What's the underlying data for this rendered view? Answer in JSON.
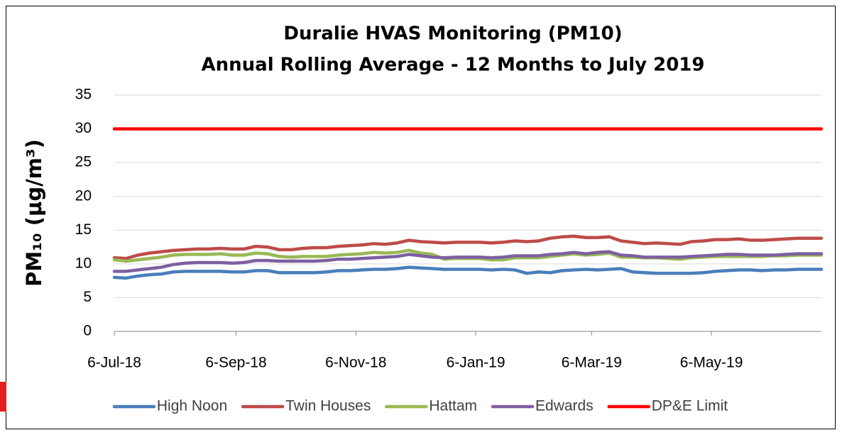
{
  "chart_data": {
    "type": "line",
    "title": "Duralie HVAS Monitoring (PM10)",
    "subtitle": "Annual Rolling Average - 12 Months to July 2019",
    "ylabel": "PM₁₀ (µg/m³)",
    "x": [
      "2018-07-06",
      "2018-07-12",
      "2018-07-18",
      "2018-07-24",
      "2018-07-30",
      "2018-08-05",
      "2018-08-11",
      "2018-08-17",
      "2018-08-23",
      "2018-08-29",
      "2018-09-04",
      "2018-09-10",
      "2018-09-16",
      "2018-09-22",
      "2018-09-28",
      "2018-10-04",
      "2018-10-10",
      "2018-10-16",
      "2018-10-22",
      "2018-10-28",
      "2018-11-03",
      "2018-11-09",
      "2018-11-15",
      "2018-11-21",
      "2018-11-27",
      "2018-12-03",
      "2018-12-09",
      "2018-12-15",
      "2018-12-21",
      "2018-12-27",
      "2019-01-02",
      "2019-01-08",
      "2019-01-14",
      "2019-01-20",
      "2019-01-26",
      "2019-02-01",
      "2019-02-07",
      "2019-02-13",
      "2019-02-19",
      "2019-02-25",
      "2019-03-03",
      "2019-03-09",
      "2019-03-15",
      "2019-03-21",
      "2019-03-27",
      "2019-04-02",
      "2019-04-08",
      "2019-04-14",
      "2019-04-20",
      "2019-04-26",
      "2019-05-02",
      "2019-05-08",
      "2019-05-14",
      "2019-05-20",
      "2019-05-26",
      "2019-06-01",
      "2019-06-07",
      "2019-06-13",
      "2019-06-19",
      "2019-06-25",
      "2019-07-01"
    ],
    "xlim": [
      "2018-07-06",
      "2019-07-01"
    ],
    "xticks": [
      {
        "value": "2018-07-06",
        "label": "6-Jul-18"
      },
      {
        "value": "2018-09-06",
        "label": "6-Sep-18"
      },
      {
        "value": "2018-11-06",
        "label": "6-Nov-18"
      },
      {
        "value": "2019-01-06",
        "label": "6-Jan-19"
      },
      {
        "value": "2019-03-06",
        "label": "6-Mar-19"
      },
      {
        "value": "2019-05-06",
        "label": "6-May-19"
      }
    ],
    "ylim": [
      0,
      35
    ],
    "yticks": [
      0,
      5,
      10,
      15,
      20,
      25,
      30,
      35
    ],
    "grid": true,
    "legend": "bottom",
    "series": [
      {
        "name": "High Noon",
        "color": "#4a7ebb",
        "values": [
          8.0,
          7.9,
          8.2,
          8.4,
          8.5,
          8.8,
          8.9,
          8.9,
          8.9,
          8.9,
          8.8,
          8.8,
          9.0,
          9.0,
          8.7,
          8.7,
          8.7,
          8.7,
          8.8,
          9.0,
          9.0,
          9.1,
          9.2,
          9.2,
          9.3,
          9.5,
          9.4,
          9.3,
          9.2,
          9.2,
          9.2,
          9.2,
          9.1,
          9.2,
          9.1,
          8.6,
          8.8,
          8.7,
          9.0,
          9.1,
          9.2,
          9.1,
          9.2,
          9.3,
          8.8,
          8.7,
          8.6,
          8.6,
          8.6,
          8.6,
          8.7,
          8.9,
          9.0,
          9.1,
          9.1,
          9.0,
          9.1,
          9.1,
          9.2,
          9.2,
          9.2
        ]
      },
      {
        "name": "Twin Houses",
        "color": "#be4b48",
        "values": [
          10.9,
          10.8,
          11.3,
          11.6,
          11.8,
          12.0,
          12.1,
          12.2,
          12.2,
          12.3,
          12.2,
          12.2,
          12.6,
          12.5,
          12.1,
          12.1,
          12.3,
          12.4,
          12.4,
          12.6,
          12.7,
          12.8,
          13.0,
          12.9,
          13.1,
          13.5,
          13.3,
          13.2,
          13.1,
          13.2,
          13.2,
          13.2,
          13.1,
          13.2,
          13.4,
          13.3,
          13.4,
          13.8,
          14.0,
          14.1,
          13.9,
          13.9,
          14.0,
          13.4,
          13.2,
          13.0,
          13.1,
          13.0,
          12.9,
          13.3,
          13.4,
          13.6,
          13.6,
          13.7,
          13.5,
          13.5,
          13.6,
          13.7,
          13.8,
          13.8,
          13.8
        ]
      },
      {
        "name": "Hattam",
        "color": "#98b954",
        "values": [
          10.6,
          10.4,
          10.6,
          10.8,
          11.0,
          11.3,
          11.4,
          11.4,
          11.4,
          11.5,
          11.3,
          11.3,
          11.6,
          11.5,
          11.1,
          11.0,
          11.1,
          11.1,
          11.1,
          11.3,
          11.4,
          11.5,
          11.7,
          11.6,
          11.7,
          12.0,
          11.6,
          11.4,
          10.7,
          10.8,
          10.8,
          10.8,
          10.6,
          10.6,
          10.9,
          10.9,
          10.9,
          11.1,
          11.3,
          11.5,
          11.3,
          11.4,
          11.6,
          11.0,
          11.0,
          10.9,
          10.9,
          10.8,
          10.7,
          10.9,
          11.0,
          11.1,
          11.1,
          11.1,
          11.1,
          11.1,
          11.2,
          11.2,
          11.3,
          11.3,
          11.3
        ]
      },
      {
        "name": "Edwards",
        "color": "#7d60a0",
        "values": [
          8.9,
          8.9,
          9.1,
          9.3,
          9.5,
          9.9,
          10.1,
          10.2,
          10.2,
          10.2,
          10.1,
          10.2,
          10.5,
          10.5,
          10.4,
          10.4,
          10.4,
          10.4,
          10.5,
          10.7,
          10.7,
          10.8,
          10.9,
          11.0,
          11.1,
          11.4,
          11.2,
          11.0,
          10.9,
          11.0,
          11.0,
          11.0,
          10.9,
          11.0,
          11.2,
          11.2,
          11.2,
          11.4,
          11.5,
          11.7,
          11.5,
          11.7,
          11.8,
          11.3,
          11.2,
          11.0,
          11.0,
          11.0,
          11.0,
          11.1,
          11.2,
          11.3,
          11.4,
          11.4,
          11.3,
          11.3,
          11.3,
          11.4,
          11.5,
          11.5,
          11.5
        ]
      },
      {
        "name": "DP&E Limit",
        "color": "#ff0000",
        "values": [
          30,
          30,
          30,
          30,
          30,
          30,
          30,
          30,
          30,
          30,
          30,
          30,
          30,
          30,
          30,
          30,
          30,
          30,
          30,
          30,
          30,
          30,
          30,
          30,
          30,
          30,
          30,
          30,
          30,
          30,
          30,
          30,
          30,
          30,
          30,
          30,
          30,
          30,
          30,
          30,
          30,
          30,
          30,
          30,
          30,
          30,
          30,
          30,
          30,
          30,
          30,
          30,
          30,
          30,
          30,
          30,
          30,
          30,
          30,
          30,
          30
        ]
      }
    ]
  }
}
